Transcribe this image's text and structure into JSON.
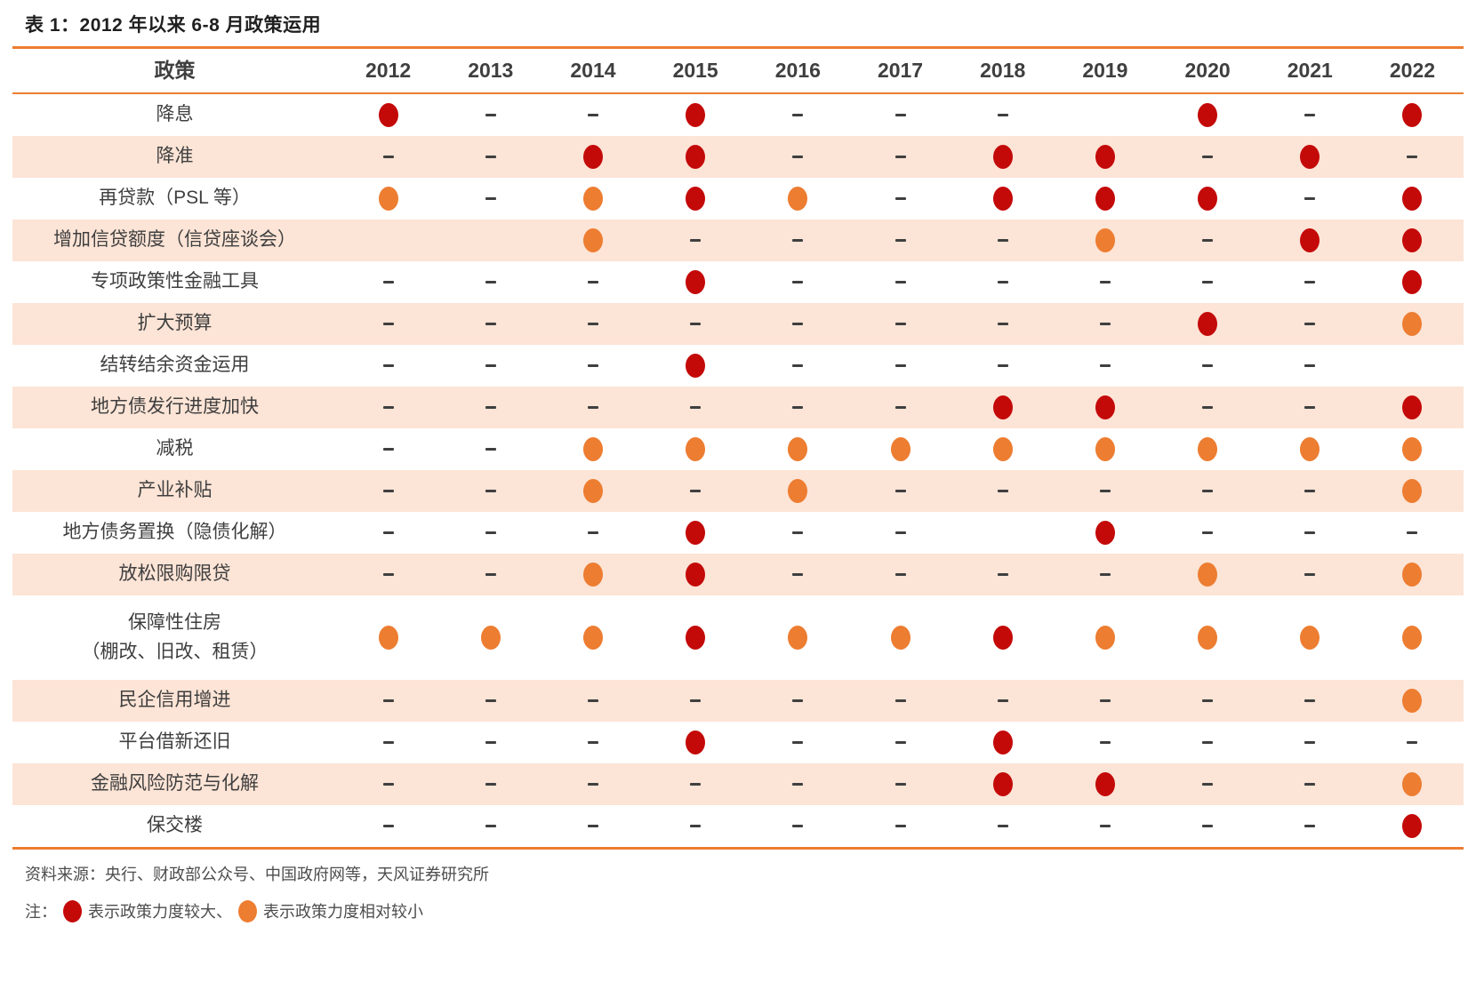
{
  "title": "表 1：2012 年以来 6-8 月政策运用",
  "chart_data": {
    "type": "table",
    "title": "表 1：2012 年以来 6-8 月政策运用",
    "columns": [
      "政策",
      "2012",
      "2013",
      "2014",
      "2015",
      "2016",
      "2017",
      "2018",
      "2019",
      "2020",
      "2021",
      "2022"
    ],
    "cell_code_meaning": {
      "large": "red dot = 政策力度较大",
      "small": "orange dot = 政策力度相对较小",
      "dash": "not used (-)",
      "none": "empty cell"
    },
    "rows": [
      {
        "policy": "降息",
        "policy2": "",
        "values": [
          "large",
          "dash",
          "dash",
          "large",
          "dash",
          "dash",
          "dash",
          "none",
          "large",
          "dash",
          "large"
        ]
      },
      {
        "policy": "降准",
        "policy2": "",
        "values": [
          "dash",
          "dash",
          "large",
          "large",
          "dash",
          "dash",
          "large",
          "large",
          "dash",
          "large",
          "dash"
        ]
      },
      {
        "policy": "再贷款（PSL 等）",
        "policy2": "",
        "values": [
          "small",
          "dash",
          "small",
          "large",
          "small",
          "dash",
          "large",
          "large",
          "large",
          "dash",
          "large"
        ]
      },
      {
        "policy": "增加信贷额度（信贷座谈会）",
        "policy2": "",
        "values": [
          "none",
          "none",
          "small",
          "dash",
          "dash",
          "dash",
          "dash",
          "small",
          "dash",
          "large",
          "large"
        ]
      },
      {
        "policy": "专项政策性金融工具",
        "policy2": "",
        "values": [
          "dash",
          "dash",
          "dash",
          "large",
          "dash",
          "dash",
          "dash",
          "dash",
          "dash",
          "dash",
          "large"
        ]
      },
      {
        "policy": "扩大预算",
        "policy2": "",
        "values": [
          "dash",
          "dash",
          "dash",
          "dash",
          "dash",
          "dash",
          "dash",
          "dash",
          "large",
          "dash",
          "small"
        ]
      },
      {
        "policy": "结转结余资金运用",
        "policy2": "",
        "values": [
          "dash",
          "dash",
          "dash",
          "large",
          "dash",
          "dash",
          "dash",
          "dash",
          "dash",
          "dash",
          "none"
        ]
      },
      {
        "policy": "地方债发行进度加快",
        "policy2": "",
        "values": [
          "dash",
          "dash",
          "dash",
          "dash",
          "dash",
          "dash",
          "large",
          "large",
          "dash",
          "dash",
          "large"
        ]
      },
      {
        "policy": "减税",
        "policy2": "",
        "values": [
          "dash",
          "dash",
          "small",
          "small",
          "small",
          "small",
          "small",
          "small",
          "small",
          "small",
          "small"
        ]
      },
      {
        "policy": "产业补贴",
        "policy2": "",
        "values": [
          "dash",
          "dash",
          "small",
          "dash",
          "small",
          "dash",
          "dash",
          "dash",
          "dash",
          "dash",
          "small"
        ]
      },
      {
        "policy": "地方债务置换（隐债化解）",
        "policy2": "",
        "values": [
          "dash",
          "dash",
          "dash",
          "large",
          "dash",
          "dash",
          "none",
          "large",
          "dash",
          "dash",
          "dash"
        ]
      },
      {
        "policy": "放松限购限贷",
        "policy2": "",
        "values": [
          "dash",
          "dash",
          "small",
          "large",
          "dash",
          "dash",
          "dash",
          "dash",
          "small",
          "dash",
          "small"
        ]
      },
      {
        "policy": "保障性住房",
        "policy2": "（棚改、旧改、租赁）",
        "values": [
          "small",
          "small",
          "small",
          "large",
          "small",
          "small",
          "large",
          "small",
          "small",
          "small",
          "small"
        ]
      },
      {
        "policy": "民企信用增进",
        "policy2": "",
        "values": [
          "dash",
          "dash",
          "dash",
          "dash",
          "dash",
          "dash",
          "dash",
          "dash",
          "dash",
          "dash",
          "small"
        ]
      },
      {
        "policy": "平台借新还旧",
        "policy2": "",
        "values": [
          "dash",
          "dash",
          "dash",
          "large",
          "dash",
          "dash",
          "large",
          "dash",
          "dash",
          "dash",
          "dash"
        ]
      },
      {
        "policy": "金融风险防范与化解",
        "policy2": "",
        "values": [
          "dash",
          "dash",
          "dash",
          "dash",
          "dash",
          "dash",
          "large",
          "large",
          "dash",
          "dash",
          "small"
        ]
      },
      {
        "policy": "保交楼",
        "policy2": "",
        "values": [
          "dash",
          "dash",
          "dash",
          "dash",
          "dash",
          "dash",
          "dash",
          "dash",
          "dash",
          "dash",
          "large"
        ]
      }
    ],
    "legend": [
      {
        "marker": "large-red-dot",
        "label": "表示政策力度较大、"
      },
      {
        "marker": "small-orange-dot",
        "label": "表示政策力度相对较小"
      }
    ],
    "source": "资料来源：央行、财政部公众号、中国政府网等，天风证券研究所",
    "note_prefix": "注："
  },
  "colors": {
    "large_dot": "#c40909",
    "small_dot": "#ed7d31",
    "alt_row_bg": "#fce4d6",
    "rule": "#ed7d31",
    "text": "#3f3f3f"
  }
}
